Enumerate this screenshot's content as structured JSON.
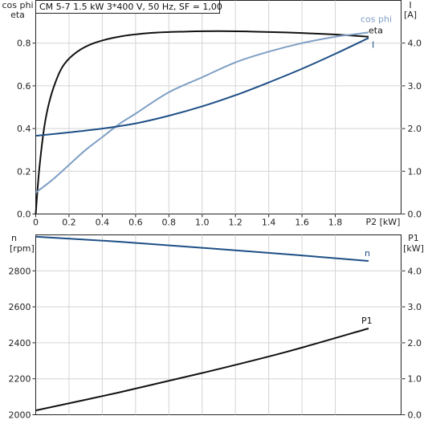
{
  "chart_data": [
    {
      "type": "line",
      "title": "CM 5-7   1.5 kW   3*400 V, 50 Hz, SF = 1,00",
      "xlabel": "P2 [kW]",
      "ylabel": [
        "cos phi",
        "eta"
      ],
      "ylabel2": [
        "I",
        "[A]"
      ],
      "xlim": [
        0,
        2
      ],
      "ylim": [
        0,
        1
      ],
      "y2lim": [
        0,
        5
      ],
      "xticks": [
        "0",
        "0.2",
        "0.4",
        "0.6",
        "0.8",
        "1.0",
        "1.2",
        "1.4",
        "1.6",
        "1.8"
      ],
      "yticks": [
        "0.0",
        "0.2",
        "0.4",
        "0.6",
        "0.8"
      ],
      "y2ticks": [
        "0.0",
        "1.0",
        "2.0",
        "3.0",
        "4.0"
      ],
      "grid": true,
      "series": [
        {
          "name": "eta",
          "axis": "left",
          "color": "#111111",
          "x": [
            0,
            0.02,
            0.05,
            0.08,
            0.12,
            0.17,
            0.25,
            0.35,
            0.5,
            0.7,
            0.9,
            1.1,
            1.3,
            1.5,
            1.7,
            1.85,
            2.0
          ],
          "y": [
            0,
            0.2,
            0.4,
            0.52,
            0.62,
            0.7,
            0.76,
            0.8,
            0.83,
            0.848,
            0.854,
            0.856,
            0.854,
            0.85,
            0.844,
            0.838,
            0.83
          ]
        },
        {
          "name": "cos phi",
          "axis": "left",
          "color": "#7f9fc4",
          "x": [
            0,
            0.1,
            0.2,
            0.3,
            0.4,
            0.5,
            0.6,
            0.8,
            1.0,
            1.2,
            1.4,
            1.6,
            1.8,
            1.9,
            2.0
          ],
          "y": [
            0.1,
            0.16,
            0.23,
            0.3,
            0.36,
            0.42,
            0.47,
            0.57,
            0.64,
            0.71,
            0.76,
            0.8,
            0.83,
            0.84,
            0.85
          ]
        },
        {
          "name": "I",
          "axis": "right",
          "color": "#1e4f86",
          "x": [
            0,
            0.2,
            0.4,
            0.6,
            0.8,
            1.0,
            1.2,
            1.4,
            1.6,
            1.8,
            2.0
          ],
          "y": [
            1.83,
            1.91,
            2.0,
            2.12,
            2.3,
            2.52,
            2.78,
            3.08,
            3.4,
            3.75,
            4.12
          ]
        }
      ]
    },
    {
      "type": "line",
      "ylabel": [
        "n",
        "[rpm]"
      ],
      "ylabel2": [
        "P1",
        "[kW]"
      ],
      "xlim": [
        0,
        2
      ],
      "ylim": [
        2000,
        3000
      ],
      "y2lim": [
        0,
        5
      ],
      "yticks": [
        "2000",
        "2200",
        "2400",
        "2600",
        "2800"
      ],
      "y2ticks": [
        "0.0",
        "1.0",
        "2.0",
        "3.0",
        "4.0"
      ],
      "grid": true,
      "series": [
        {
          "name": "n",
          "axis": "left",
          "color": "#1e4f86",
          "x": [
            0,
            0.5,
            1.0,
            1.5,
            2.0
          ],
          "y": [
            2990,
            2962,
            2928,
            2893,
            2855
          ]
        },
        {
          "name": "P1",
          "axis": "right",
          "color": "#111111",
          "x": [
            0,
            0.5,
            1.0,
            1.5,
            2.0
          ],
          "y": [
            0.12,
            0.62,
            1.16,
            1.74,
            2.4
          ]
        }
      ]
    }
  ]
}
